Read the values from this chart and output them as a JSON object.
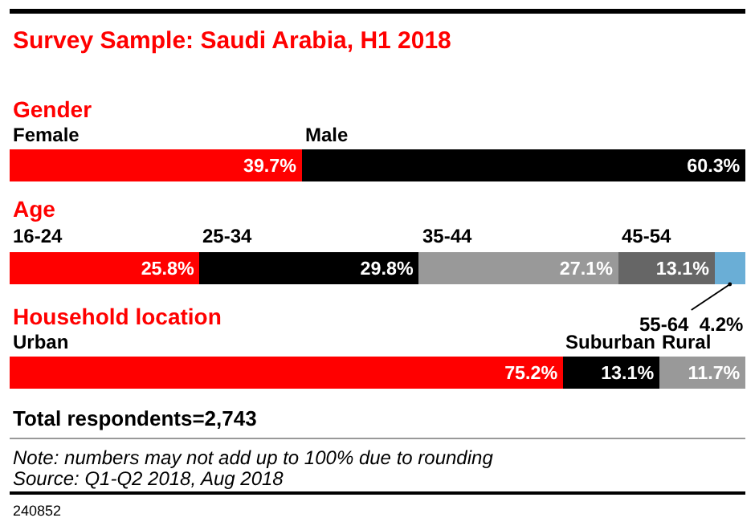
{
  "chart_data": [
    {
      "type": "bar",
      "orientation": "horizontal",
      "stacked": true,
      "tick_labels": false,
      "title": "Survey Sample: Saudi Arabia, H1 2018",
      "categories": [
        "Gender"
      ],
      "series": [
        {
          "name": "Female",
          "color": "#ff0000",
          "values": [
            39.7
          ],
          "value_labels": [
            "39.7%"
          ]
        },
        {
          "name": "Male",
          "color": "#000000",
          "values": [
            60.3
          ],
          "value_labels": [
            "60.3%"
          ]
        }
      ]
    },
    {
      "type": "bar",
      "orientation": "horizontal",
      "stacked": true,
      "tick_labels": false,
      "categories": [
        "Age"
      ],
      "series": [
        {
          "name": "16-24",
          "color": "#ff0000",
          "values": [
            25.8
          ],
          "value_labels": [
            "25.8%"
          ]
        },
        {
          "name": "25-34",
          "color": "#000000",
          "values": [
            29.8
          ],
          "value_labels": [
            "29.8%"
          ]
        },
        {
          "name": "35-44",
          "color": "#999999",
          "values": [
            27.1
          ],
          "value_labels": [
            "27.1%"
          ]
        },
        {
          "name": "45-54",
          "color": "#666666",
          "values": [
            13.1
          ],
          "value_labels": [
            "13.1%"
          ]
        },
        {
          "name": "55-64",
          "color": "#6aaed6",
          "values": [
            4.2
          ],
          "value_labels": [
            "4.2%"
          ]
        }
      ]
    },
    {
      "type": "bar",
      "orientation": "horizontal",
      "stacked": true,
      "tick_labels": false,
      "categories": [
        "Household location"
      ],
      "series": [
        {
          "name": "Urban",
          "color": "#ff0000",
          "values": [
            75.2
          ],
          "value_labels": [
            "75.2%"
          ]
        },
        {
          "name": "Suburban",
          "color": "#000000",
          "values": [
            13.1
          ],
          "value_labels": [
            "13.1%"
          ]
        },
        {
          "name": "Rural",
          "color": "#999999",
          "values": [
            11.7
          ],
          "value_labels": [
            "11.7%"
          ]
        }
      ],
      "annotations": [
        "Total respondents=2,743",
        "Note: numbers may not add up to 100% due to rounding",
        "Source: Q1-Q2 2018, Aug 2018",
        "240852"
      ]
    }
  ]
}
